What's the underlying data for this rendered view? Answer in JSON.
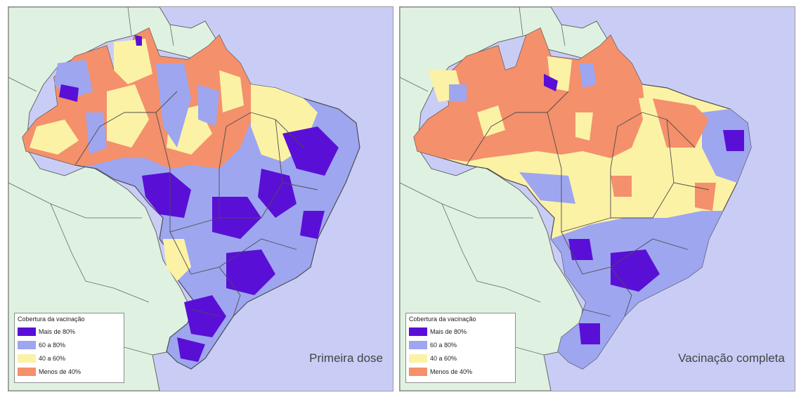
{
  "legend": {
    "title": "Cobertura da vacinação",
    "items": [
      {
        "label": "Mais de 80%",
        "color": "#5a0fd6"
      },
      {
        "label": "60 a 80%",
        "color": "#9ea6f0"
      },
      {
        "label": "40 a 60%",
        "color": "#fcf2a6"
      },
      {
        "label": "Menos de 40%",
        "color": "#f4906b"
      }
    ]
  },
  "colors": {
    "ocean": "#c9cdf6",
    "neighbor_land": "#dff2e1",
    "state_border": "#4d4d4d",
    "country_border": "#666666"
  },
  "panels": [
    {
      "id": "primeira-dose",
      "label": "Primeira dose"
    },
    {
      "id": "vacinacao-completa",
      "label": "Vacinação completa"
    }
  ]
}
